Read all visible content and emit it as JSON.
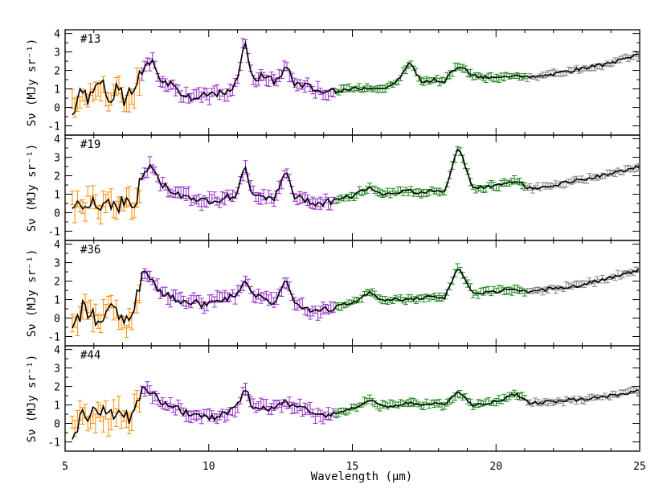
{
  "chart_data": {
    "type": "line",
    "xlabel": "Wavelength (μm)",
    "ylabel": "Sν (MJy sr⁻¹)",
    "xlim": [
      5,
      25
    ],
    "ylim": [
      -1.5,
      4.2
    ],
    "x_ticks": [
      "5",
      "10",
      "15",
      "20",
      "25"
    ],
    "y_ticks": [
      "-1",
      "0",
      "1",
      "2",
      "3",
      "4"
    ],
    "series_colors": {
      "SL2": "#ff8c00",
      "SL1": "#9b30d0",
      "LL2": "#1e8c1e",
      "LL1": "#888888",
      "model": "#000000"
    },
    "panels": [
      {
        "label": "#13",
        "points": [
          [
            5.3,
            0.0
          ],
          [
            5.6,
            0.8
          ],
          [
            5.9,
            0.5
          ],
          [
            6.2,
            1.6
          ],
          [
            6.5,
            0.4
          ],
          [
            6.8,
            0.9
          ],
          [
            7.1,
            0.3
          ],
          [
            7.4,
            1.0
          ],
          [
            7.7,
            2.0
          ],
          [
            8.0,
            2.6
          ],
          [
            8.3,
            1.6
          ],
          [
            8.6,
            1.3
          ],
          [
            8.9,
            1.0
          ],
          [
            9.2,
            0.6
          ],
          [
            9.5,
            0.5
          ],
          [
            9.8,
            0.6
          ],
          [
            10.2,
            0.8
          ],
          [
            10.6,
            0.7
          ],
          [
            11.0,
            1.4
          ],
          [
            11.25,
            3.9
          ],
          [
            11.5,
            1.5
          ],
          [
            11.9,
            1.7
          ],
          [
            12.3,
            1.4
          ],
          [
            12.7,
            2.2
          ],
          [
            13.0,
            1.3
          ],
          [
            13.4,
            1.2
          ],
          [
            13.8,
            0.9
          ],
          [
            14.2,
            0.8
          ],
          [
            14.6,
            0.9
          ],
          [
            15.0,
            1.0
          ],
          [
            15.6,
            1.1
          ],
          [
            16.0,
            1.0
          ],
          [
            16.5,
            1.3
          ],
          [
            17.0,
            2.4
          ],
          [
            17.4,
            1.4
          ],
          [
            17.8,
            1.5
          ],
          [
            18.2,
            1.4
          ],
          [
            18.7,
            2.3
          ],
          [
            19.2,
            1.7
          ],
          [
            19.7,
            1.6
          ],
          [
            20.2,
            1.6
          ],
          [
            20.7,
            1.8
          ],
          [
            21.2,
            1.6
          ],
          [
            22.0,
            1.8
          ],
          [
            23.0,
            2.1
          ],
          [
            24.0,
            2.4
          ],
          [
            25.0,
            2.9
          ]
        ]
      },
      {
        "label": "#19",
        "points": [
          [
            5.3,
            0.3
          ],
          [
            5.6,
            0.5
          ],
          [
            5.9,
            0.8
          ],
          [
            6.2,
            0.2
          ],
          [
            6.5,
            0.7
          ],
          [
            6.8,
            0.4
          ],
          [
            7.1,
            0.6
          ],
          [
            7.4,
            0.3
          ],
          [
            7.7,
            2.0
          ],
          [
            8.0,
            2.6
          ],
          [
            8.3,
            1.6
          ],
          [
            8.6,
            1.3
          ],
          [
            8.9,
            1.0
          ],
          [
            9.2,
            0.9
          ],
          [
            9.5,
            0.8
          ],
          [
            9.8,
            0.6
          ],
          [
            10.2,
            0.7
          ],
          [
            10.6,
            0.8
          ],
          [
            11.0,
            1.0
          ],
          [
            11.25,
            2.5
          ],
          [
            11.5,
            1.1
          ],
          [
            11.9,
            0.9
          ],
          [
            12.3,
            0.8
          ],
          [
            12.7,
            2.2
          ],
          [
            13.0,
            0.8
          ],
          [
            13.4,
            0.7
          ],
          [
            13.8,
            0.5
          ],
          [
            14.2,
            0.6
          ],
          [
            14.6,
            0.8
          ],
          [
            15.0,
            0.9
          ],
          [
            15.6,
            1.4
          ],
          [
            16.0,
            1.0
          ],
          [
            16.5,
            1.1
          ],
          [
            17.0,
            1.2
          ],
          [
            17.4,
            1.1
          ],
          [
            17.8,
            1.2
          ],
          [
            18.2,
            1.1
          ],
          [
            18.7,
            3.6
          ],
          [
            19.2,
            1.3
          ],
          [
            19.7,
            1.4
          ],
          [
            20.2,
            1.5
          ],
          [
            20.7,
            1.7
          ],
          [
            21.2,
            1.3
          ],
          [
            22.0,
            1.5
          ],
          [
            23.0,
            1.8
          ],
          [
            24.0,
            2.1
          ],
          [
            25.0,
            2.5
          ]
        ]
      },
      {
        "label": "#36",
        "points": [
          [
            5.3,
            -0.8
          ],
          [
            5.6,
            0.6
          ],
          [
            5.9,
            0.3
          ],
          [
            6.2,
            -0.2
          ],
          [
            6.5,
            0.4
          ],
          [
            6.8,
            0.1
          ],
          [
            7.1,
            -0.3
          ],
          [
            7.4,
            0.4
          ],
          [
            7.7,
            2.6
          ],
          [
            8.0,
            2.0
          ],
          [
            8.3,
            1.4
          ],
          [
            8.6,
            1.2
          ],
          [
            8.9,
            1.0
          ],
          [
            9.2,
            0.8
          ],
          [
            9.5,
            0.9
          ],
          [
            9.8,
            0.7
          ],
          [
            10.2,
            1.0
          ],
          [
            10.6,
            1.1
          ],
          [
            11.0,
            1.2
          ],
          [
            11.25,
            2.1
          ],
          [
            11.5,
            1.3
          ],
          [
            11.9,
            1.0
          ],
          [
            12.3,
            0.9
          ],
          [
            12.7,
            2.0
          ],
          [
            13.0,
            0.8
          ],
          [
            13.4,
            0.5
          ],
          [
            13.8,
            0.3
          ],
          [
            14.2,
            0.5
          ],
          [
            14.6,
            0.7
          ],
          [
            15.0,
            0.8
          ],
          [
            15.6,
            1.4
          ],
          [
            16.0,
            0.9
          ],
          [
            16.5,
            1.0
          ],
          [
            17.0,
            1.0
          ],
          [
            17.4,
            1.1
          ],
          [
            17.8,
            1.2
          ],
          [
            18.2,
            1.1
          ],
          [
            18.7,
            2.8
          ],
          [
            19.2,
            1.3
          ],
          [
            19.7,
            1.4
          ],
          [
            20.2,
            1.5
          ],
          [
            20.7,
            1.5
          ],
          [
            21.2,
            1.4
          ],
          [
            22.0,
            1.6
          ],
          [
            23.0,
            1.8
          ],
          [
            24.0,
            2.2
          ],
          [
            25.0,
            2.6
          ]
        ]
      },
      {
        "label": "#44",
        "points": [
          [
            5.3,
            -0.5
          ],
          [
            5.6,
            0.7
          ],
          [
            5.9,
            0.4
          ],
          [
            6.2,
            0.6
          ],
          [
            6.5,
            0.3
          ],
          [
            6.8,
            0.5
          ],
          [
            7.1,
            0.2
          ],
          [
            7.4,
            0.7
          ],
          [
            7.7,
            1.9
          ],
          [
            8.0,
            1.7
          ],
          [
            8.3,
            1.2
          ],
          [
            8.6,
            1.0
          ],
          [
            8.9,
            0.8
          ],
          [
            9.2,
            0.6
          ],
          [
            9.5,
            0.5
          ],
          [
            9.8,
            0.4
          ],
          [
            10.2,
            0.3
          ],
          [
            10.6,
            0.6
          ],
          [
            11.0,
            0.9
          ],
          [
            11.25,
            2.1
          ],
          [
            11.5,
            1.0
          ],
          [
            11.9,
            0.8
          ],
          [
            12.3,
            0.9
          ],
          [
            12.7,
            1.1
          ],
          [
            13.0,
            0.9
          ],
          [
            13.4,
            0.7
          ],
          [
            13.8,
            0.4
          ],
          [
            14.2,
            0.5
          ],
          [
            14.6,
            0.6
          ],
          [
            15.0,
            0.8
          ],
          [
            15.6,
            1.3
          ],
          [
            16.0,
            0.9
          ],
          [
            16.5,
            1.0
          ],
          [
            17.0,
            1.1
          ],
          [
            17.4,
            1.0
          ],
          [
            17.8,
            1.1
          ],
          [
            18.2,
            1.0
          ],
          [
            18.7,
            1.7
          ],
          [
            19.2,
            1.0
          ],
          [
            19.7,
            1.1
          ],
          [
            20.2,
            1.3
          ],
          [
            20.7,
            1.6
          ],
          [
            21.2,
            1.1
          ],
          [
            22.0,
            1.2
          ],
          [
            23.0,
            1.3
          ],
          [
            24.0,
            1.5
          ],
          [
            25.0,
            1.8
          ]
        ]
      }
    ]
  }
}
